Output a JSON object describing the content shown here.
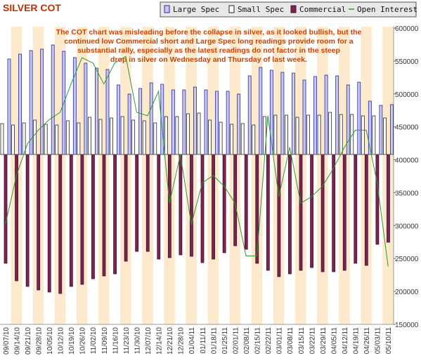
{
  "chart_data": {
    "type": "bar",
    "title": "SILVER COT",
    "annotation": [
      "The COT chart was misleading before the collapse in silver, as it looked bullish, but the",
      "continued low Commercial short and Large Spec long readings provide room for a",
      "substantial rally, especially as the latest readings do not factor in the steep",
      "drop in silver on Wednesday and Thursday of last week."
    ],
    "categories": [
      "09/07/10",
      "09/14/10",
      "09/21/10",
      "09/28/10",
      "10/05/10",
      "10/12/10",
      "10/19/10",
      "10/26/10",
      "11/02/10",
      "11/09/10",
      "11/16/10",
      "11/23/10",
      "11/30/10",
      "12/07/10",
      "12/14/10",
      "12/21/10",
      "12/28/10",
      "01/04/11",
      "01/11/11",
      "01/18/11",
      "01/25/11",
      "02/01/11",
      "02/08/11",
      "02/15/11",
      "02/22/11",
      "03/01/11",
      "03/08/11",
      "03/15/11",
      "03/22/11",
      "03/29/11",
      "04/05/11",
      "04/12/11",
      "04/19/11",
      "04/26/11",
      "05/03/11",
      "05/10/11"
    ],
    "series": [
      {
        "name": "Large Spec",
        "color": "#c8c8f4",
        "axis": "y2",
        "values": [
          68000,
          71500,
          74000,
          75000,
          78000,
          73500,
          69000,
          65000,
          61500,
          60500,
          49500,
          43000,
          47000,
          51000,
          50000,
          46000,
          46000,
          48000,
          46000,
          45000,
          45000,
          43000,
          56000,
          62000,
          60000,
          58500,
          58000,
          53000,
          55500,
          56500,
          56000,
          49500,
          51500,
          38000,
          35000,
          35500
        ]
      },
      {
        "name": "Small Spec",
        "color": "#ffffff",
        "axis": "y2",
        "values": [
          22000,
          21000,
          22500,
          24500,
          21500,
          21000,
          24000,
          22500,
          26500,
          25000,
          26000,
          27000,
          24500,
          24000,
          22500,
          27000,
          27000,
          29000,
          29500,
          24500,
          23000,
          21500,
          22000,
          21000,
          27000,
          28000,
          28000,
          26500,
          28000,
          28000,
          30000,
          28500,
          28500,
          27500,
          27500,
          26000
        ]
      },
      {
        "name": "Commercial",
        "color": "#7a2450",
        "axis": "y2",
        "values": [
          -77500,
          -90000,
          -94000,
          -96500,
          -98000,
          -99000,
          -94000,
          -92500,
          -88500,
          -86500,
          -85000,
          -76000,
          -69000,
          -69000,
          -74500,
          -73500,
          -71500,
          -72500,
          -77000,
          -74500,
          -70000,
          -65000,
          -67500,
          -77500,
          -82500,
          -87000,
          -85000,
          -82500,
          -80500,
          -83500,
          -83500,
          -82500,
          -77500,
          -79000,
          -64000,
          -62500
        ]
      },
      {
        "name": "Open Interest",
        "color": "#2e9a2e",
        "type": "line",
        "values": [
          302000,
          376000,
          424000,
          445000,
          461000,
          472000,
          515000,
          555000,
          547000,
          515000,
          547000,
          557000,
          472000,
          467000,
          504000,
          334000,
          408000,
          302000,
          365000,
          376000,
          360000,
          334000,
          254000,
          254000,
          467000,
          344000,
          419000,
          334000,
          344000,
          360000,
          387000,
          419000,
          445000,
          445000,
          365000,
          238000
        ]
      }
    ],
    "ylim": [
      150000,
      600000
    ],
    "yticks": [
      150000,
      200000,
      250000,
      300000,
      350000,
      400000,
      450000,
      500000,
      550000,
      600000
    ],
    "y2lim": [
      -121000,
      90000
    ],
    "grid": true,
    "legend": "top-right"
  }
}
